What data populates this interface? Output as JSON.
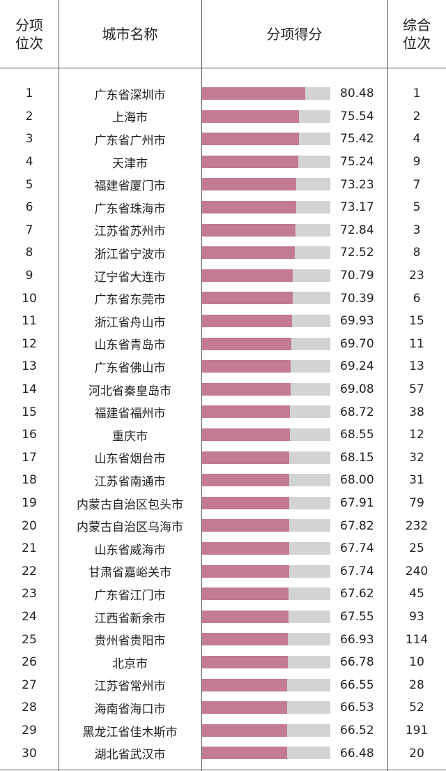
{
  "headers": {
    "rank": "分项\n位次",
    "city": "城市名称",
    "score": "分项得分",
    "overall": "综合\n位次"
  },
  "chart_data": {
    "type": "bar",
    "xlim": [
      0,
      100
    ],
    "colors": {
      "fill": "#c27b92",
      "track": "#d3d3d3"
    },
    "rows": [
      {
        "rank": "1",
        "city": "广东省深圳市",
        "score": "80.48",
        "overall": "1"
      },
      {
        "rank": "2",
        "city": "上海市",
        "score": "75.54",
        "overall": "2"
      },
      {
        "rank": "3",
        "city": "广东省广州市",
        "score": "75.42",
        "overall": "4"
      },
      {
        "rank": "4",
        "city": "天津市",
        "score": "75.24",
        "overall": "9"
      },
      {
        "rank": "5",
        "city": "福建省厦门市",
        "score": "73.23",
        "overall": "7"
      },
      {
        "rank": "6",
        "city": "广东省珠海市",
        "score": "73.17",
        "overall": "5"
      },
      {
        "rank": "7",
        "city": "江苏省苏州市",
        "score": "72.84",
        "overall": "3"
      },
      {
        "rank": "8",
        "city": "浙江省宁波市",
        "score": "72.52",
        "overall": "8"
      },
      {
        "rank": "9",
        "city": "辽宁省大连市",
        "score": "70.79",
        "overall": "23"
      },
      {
        "rank": "10",
        "city": "广东省东莞市",
        "score": "70.39",
        "overall": "6"
      },
      {
        "rank": "11",
        "city": "浙江省舟山市",
        "score": "69.93",
        "overall": "15"
      },
      {
        "rank": "12",
        "city": "山东省青岛市",
        "score": "69.70",
        "overall": "11"
      },
      {
        "rank": "13",
        "city": "广东省佛山市",
        "score": "69.24",
        "overall": "13"
      },
      {
        "rank": "14",
        "city": "河北省秦皇岛市",
        "score": "69.08",
        "overall": "57"
      },
      {
        "rank": "15",
        "city": "福建省福州市",
        "score": "68.72",
        "overall": "38"
      },
      {
        "rank": "16",
        "city": "重庆市",
        "score": "68.55",
        "overall": "12"
      },
      {
        "rank": "17",
        "city": "山东省烟台市",
        "score": "68.15",
        "overall": "32"
      },
      {
        "rank": "18",
        "city": "江苏省南通市",
        "score": "68.00",
        "overall": "31"
      },
      {
        "rank": "19",
        "city": "内蒙古自治区包头市",
        "score": "67.91",
        "overall": "79"
      },
      {
        "rank": "20",
        "city": "内蒙古自治区乌海市",
        "score": "67.82",
        "overall": "232"
      },
      {
        "rank": "21",
        "city": "山东省威海市",
        "score": "67.74",
        "overall": "25"
      },
      {
        "rank": "22",
        "city": "甘肃省嘉峪关市",
        "score": "67.74",
        "overall": "240"
      },
      {
        "rank": "23",
        "city": "广东省江门市",
        "score": "67.62",
        "overall": "45"
      },
      {
        "rank": "24",
        "city": "江西省新余市",
        "score": "67.55",
        "overall": "93"
      },
      {
        "rank": "25",
        "city": "贵州省贵阳市",
        "score": "66.93",
        "overall": "114"
      },
      {
        "rank": "26",
        "city": "北京市",
        "score": "66.78",
        "overall": "10"
      },
      {
        "rank": "27",
        "city": "江苏省常州市",
        "score": "66.55",
        "overall": "28"
      },
      {
        "rank": "28",
        "city": "海南省海口市",
        "score": "66.53",
        "overall": "52"
      },
      {
        "rank": "29",
        "city": "黑龙江省佳木斯市",
        "score": "66.52",
        "overall": "191"
      },
      {
        "rank": "30",
        "city": "湖北省武汉市",
        "score": "66.48",
        "overall": "20"
      }
    ]
  }
}
